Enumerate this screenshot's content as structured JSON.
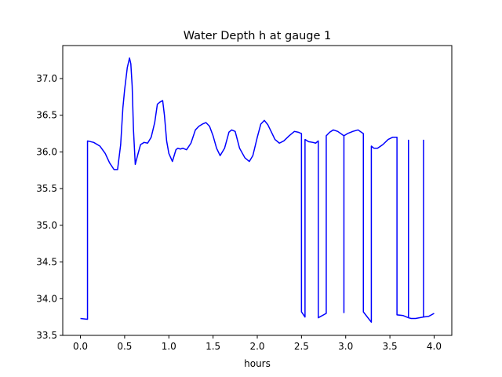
{
  "chart_data": {
    "type": "line",
    "title": "Water Depth h at gauge 1",
    "xlabel": "hours",
    "ylabel": "",
    "xlim": [
      -0.2,
      4.2
    ],
    "ylim": [
      33.5,
      37.45
    ],
    "xticks": [
      0.0,
      0.5,
      1.0,
      1.5,
      2.0,
      2.5,
      3.0,
      3.5,
      4.0
    ],
    "xtick_labels": [
      "0.0",
      "0.5",
      "1.0",
      "1.5",
      "2.0",
      "2.5",
      "3.0",
      "3.5",
      "4.0"
    ],
    "yticks": [
      33.5,
      34.0,
      34.5,
      35.0,
      35.5,
      36.0,
      36.5,
      37.0
    ],
    "ytick_labels": [
      "33.5",
      "34.0",
      "34.5",
      "35.0",
      "35.5",
      "36.0",
      "36.5",
      "37.0"
    ],
    "grid": false,
    "series": [
      {
        "color": "#0000ff",
        "x": [
          0.0,
          0.08,
          0.08,
          0.15,
          0.22,
          0.28,
          0.33,
          0.38,
          0.42,
          0.455,
          0.48,
          0.5,
          0.53,
          0.555,
          0.57,
          0.585,
          0.6,
          0.62,
          0.65,
          0.68,
          0.72,
          0.76,
          0.8,
          0.84,
          0.87,
          0.9,
          0.93,
          0.95,
          0.975,
          1.0,
          1.04,
          1.08,
          1.1,
          1.13,
          1.16,
          1.2,
          1.25,
          1.3,
          1.34,
          1.38,
          1.42,
          1.46,
          1.5,
          1.54,
          1.58,
          1.63,
          1.68,
          1.71,
          1.75,
          1.8,
          1.86,
          1.91,
          1.95,
          2.0,
          2.04,
          2.08,
          2.12,
          2.16,
          2.2,
          2.25,
          2.3,
          2.36,
          2.42,
          2.46,
          2.5,
          2.5,
          2.54,
          2.54,
          2.58,
          2.63,
          2.66,
          2.69,
          2.69,
          2.69,
          2.78,
          2.78,
          2.82,
          2.86,
          2.91,
          2.98,
          2.98,
          2.98,
          3.02,
          3.08,
          3.14,
          3.2,
          3.2,
          3.2,
          3.29,
          3.29,
          3.32,
          3.36,
          3.42,
          3.48,
          3.53,
          3.58,
          3.58,
          3.65,
          3.71,
          3.71,
          3.71,
          3.74,
          3.79,
          3.88,
          3.88,
          3.88,
          3.94,
          4.0
        ],
        "y": [
          33.73,
          33.72,
          36.15,
          36.13,
          36.08,
          35.98,
          35.85,
          35.76,
          35.76,
          36.1,
          36.6,
          36.85,
          37.15,
          37.28,
          37.2,
          36.9,
          36.3,
          35.83,
          35.97,
          36.1,
          36.13,
          36.12,
          36.2,
          36.4,
          36.65,
          36.68,
          36.7,
          36.5,
          36.15,
          35.98,
          35.87,
          36.03,
          36.05,
          36.04,
          36.05,
          36.03,
          36.12,
          36.3,
          36.35,
          36.38,
          36.4,
          36.35,
          36.22,
          36.05,
          35.95,
          36.05,
          36.27,
          36.3,
          36.28,
          36.05,
          35.92,
          35.87,
          35.95,
          36.2,
          36.38,
          36.43,
          36.37,
          36.27,
          36.17,
          36.12,
          36.15,
          36.22,
          36.28,
          36.27,
          36.25,
          33.82,
          33.75,
          36.17,
          36.14,
          36.13,
          36.12,
          36.15,
          33.76,
          33.74,
          33.8,
          36.22,
          36.27,
          36.3,
          36.28,
          36.22,
          33.81,
          36.22,
          36.25,
          36.28,
          36.3,
          36.25,
          36.22,
          33.82,
          33.68,
          36.08,
          36.05,
          36.05,
          36.1,
          36.17,
          36.2,
          36.2,
          33.78,
          33.77,
          33.74,
          36.16,
          33.74,
          33.73,
          33.73,
          33.75,
          36.16,
          33.75,
          33.76,
          33.8
        ]
      }
    ]
  }
}
